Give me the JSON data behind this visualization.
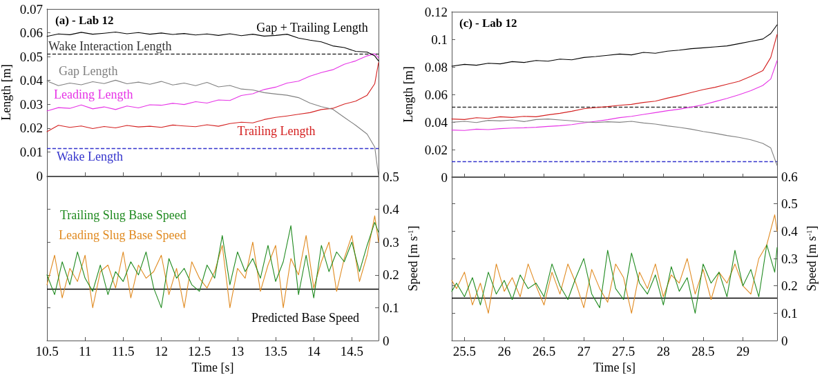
{
  "chart_data": [
    {
      "type": "line",
      "title": "(a) - Lab 12",
      "ylabel": "Length [m]",
      "xlim": [
        10.5,
        14.85
      ],
      "xticks": [
        10.5,
        11,
        11.5,
        12,
        12.5,
        13,
        13.5,
        14,
        14.5
      ],
      "ylim": [
        0,
        0.07
      ],
      "yticks": [
        0,
        0.01,
        0.02,
        0.03,
        0.04,
        0.05,
        0.06,
        0.07
      ],
      "tick_labels": "y",
      "x": [
        10.5,
        10.65,
        10.8,
        10.95,
        11.1,
        11.25,
        11.4,
        11.55,
        11.7,
        11.85,
        12.0,
        12.15,
        12.3,
        12.45,
        12.6,
        12.75,
        12.9,
        13.05,
        13.2,
        13.35,
        13.5,
        13.65,
        13.8,
        13.95,
        14.1,
        14.25,
        14.4,
        14.55,
        14.7,
        14.8,
        14.85
      ],
      "series": [
        {
          "name": "Gap + Trailing Length",
          "color": "#000000",
          "values": [
            0.0585,
            0.0595,
            0.0592,
            0.0602,
            0.0594,
            0.0598,
            0.0603,
            0.0596,
            0.0601,
            0.0594,
            0.0599,
            0.0593,
            0.0597,
            0.0591,
            0.0595,
            0.0589,
            0.0596,
            0.0588,
            0.0594,
            0.0586,
            0.0589,
            0.0594,
            0.0578,
            0.0569,
            0.0562,
            0.0545,
            0.0538,
            0.0522,
            0.0519,
            0.0503,
            0.0482
          ]
        },
        {
          "name": "Gap Length",
          "color": "#808080",
          "values": [
            0.0398,
            0.0378,
            0.0389,
            0.0382,
            0.0395,
            0.0387,
            0.0401,
            0.0386,
            0.0393,
            0.0384,
            0.0396,
            0.0381,
            0.0389,
            0.0378,
            0.0392,
            0.0373,
            0.0379,
            0.0364,
            0.036,
            0.0349,
            0.0343,
            0.0338,
            0.0328,
            0.0305,
            0.029,
            0.0279,
            0.0245,
            0.0212,
            0.0175,
            0.0121,
            0.0
          ]
        },
        {
          "name": "Leading Length",
          "color": "#e633e6",
          "values": [
            0.0272,
            0.0286,
            0.0283,
            0.0297,
            0.0281,
            0.0289,
            0.0278,
            0.0293,
            0.0285,
            0.0298,
            0.0296,
            0.0304,
            0.0299,
            0.0311,
            0.0305,
            0.0318,
            0.0316,
            0.0337,
            0.0344,
            0.0362,
            0.0372,
            0.0389,
            0.0397,
            0.0418,
            0.0433,
            0.0445,
            0.0468,
            0.0482,
            0.0503,
            0.0512,
            0.0495
          ]
        },
        {
          "name": "Trailing Length",
          "color": "#d42020",
          "values": [
            0.0185,
            0.0212,
            0.0203,
            0.0209,
            0.0198,
            0.0207,
            0.0201,
            0.0211,
            0.0205,
            0.0208,
            0.0203,
            0.0213,
            0.0209,
            0.0206,
            0.0214,
            0.0208,
            0.0219,
            0.0225,
            0.0222,
            0.0236,
            0.0245,
            0.0251,
            0.0258,
            0.0265,
            0.0278,
            0.0283,
            0.0301,
            0.0313,
            0.0338,
            0.0386,
            0.0475
          ]
        }
      ],
      "ref_lines": [
        {
          "axis": "y",
          "value": 0.051,
          "label": "Wake Interaction Length",
          "color": "#333333",
          "line_style": "dashed"
        },
        {
          "axis": "y",
          "value": 0.0115,
          "label": "Wake Length",
          "color": "#3333cc",
          "line_style": "dashed"
        }
      ]
    },
    {
      "type": "line",
      "title": "(c) - Lab 12",
      "ylabel": "Length [m]",
      "xlim": [
        25.34,
        29.43
      ],
      "xticks": [
        25.5,
        26,
        26.5,
        27,
        27.5,
        28,
        28.5,
        29
      ],
      "ylim": [
        0,
        0.12
      ],
      "yticks": [
        0,
        0.02,
        0.04,
        0.06,
        0.08,
        0.1,
        0.12
      ],
      "tick_labels": "y",
      "x": [
        25.34,
        25.5,
        25.65,
        25.8,
        25.95,
        26.1,
        26.25,
        26.4,
        26.55,
        26.7,
        26.85,
        27.0,
        27.15,
        27.3,
        27.45,
        27.6,
        27.75,
        27.9,
        28.05,
        28.2,
        28.35,
        28.5,
        28.65,
        28.8,
        28.95,
        29.1,
        29.25,
        29.35,
        29.43
      ],
      "series": [
        {
          "color": "#000000",
          "values": [
            0.0805,
            0.0818,
            0.0812,
            0.0826,
            0.0822,
            0.0838,
            0.0832,
            0.0846,
            0.0841,
            0.0856,
            0.0851,
            0.0868,
            0.0875,
            0.0884,
            0.0893,
            0.0887,
            0.0905,
            0.0899,
            0.0914,
            0.0921,
            0.0932,
            0.0938,
            0.0945,
            0.0952,
            0.0968,
            0.0985,
            0.1002,
            0.1041,
            0.1105
          ]
        },
        {
          "color": "#808080",
          "values": [
            0.0398,
            0.0405,
            0.0396,
            0.0412,
            0.0408,
            0.0415,
            0.0403,
            0.0418,
            0.0422,
            0.0415,
            0.0409,
            0.0401,
            0.0396,
            0.0402,
            0.0398,
            0.0405,
            0.0393,
            0.0385,
            0.0372,
            0.0361,
            0.0348,
            0.0331,
            0.0318,
            0.0302,
            0.0289,
            0.0271,
            0.0245,
            0.0212,
            0.0085
          ]
        },
        {
          "color": "#e633e6",
          "values": [
            0.0342,
            0.0339,
            0.0348,
            0.0345,
            0.0352,
            0.0356,
            0.0358,
            0.0362,
            0.0368,
            0.0373,
            0.0381,
            0.0394,
            0.0405,
            0.0417,
            0.0432,
            0.0441,
            0.0455,
            0.0468,
            0.0482,
            0.0493,
            0.0508,
            0.0525,
            0.0548,
            0.0571,
            0.0598,
            0.0628,
            0.0665,
            0.0712,
            0.0845
          ]
        },
        {
          "color": "#d42020",
          "values": [
            0.0422,
            0.0418,
            0.0431,
            0.0426,
            0.0438,
            0.0433,
            0.0441,
            0.0438,
            0.0452,
            0.0463,
            0.0478,
            0.0496,
            0.0505,
            0.0512,
            0.0521,
            0.0528,
            0.0542,
            0.0551,
            0.0573,
            0.0592,
            0.0614,
            0.0635,
            0.0652,
            0.0674,
            0.0695,
            0.0731,
            0.0772,
            0.0868,
            0.1035
          ]
        }
      ],
      "ref_lines": [
        {
          "axis": "y",
          "value": 0.051,
          "color": "#333333",
          "line_style": "dashed"
        },
        {
          "axis": "y",
          "value": 0.0115,
          "color": "#3333cc",
          "line_style": "dashed"
        }
      ]
    },
    {
      "type": "line",
      "xlabel": "Time [s]",
      "y2label": "Speed [m s$^{-1}$]",
      "xlim": [
        10.5,
        14.85
      ],
      "xticks": [
        10.5,
        11,
        11.5,
        12,
        12.5,
        13,
        13.5,
        14,
        14.5
      ],
      "y2lim": [
        0,
        0.5
      ],
      "y2ticks": [
        0,
        0.1,
        0.2,
        0.3,
        0.4,
        0.5
      ],
      "x": [
        10.5,
        10.6,
        10.7,
        10.8,
        10.9,
        11.0,
        11.1,
        11.2,
        11.3,
        11.4,
        11.5,
        11.6,
        11.7,
        11.8,
        11.9,
        12.0,
        12.1,
        12.2,
        12.3,
        12.4,
        12.5,
        12.6,
        12.7,
        12.8,
        12.9,
        13.0,
        13.1,
        13.2,
        13.3,
        13.4,
        13.5,
        13.6,
        13.7,
        13.8,
        13.9,
        14.0,
        14.1,
        14.2,
        14.3,
        14.4,
        14.5,
        14.6,
        14.7,
        14.8,
        14.85
      ],
      "series": [
        {
          "name": "Trailing Slug Base Speed",
          "color": "#1f8a1f",
          "axis": "y2",
          "values": [
            0.2,
            0.14,
            0.24,
            0.17,
            0.27,
            0.19,
            0.15,
            0.23,
            0.14,
            0.21,
            0.18,
            0.24,
            0.2,
            0.27,
            0.16,
            0.1,
            0.25,
            0.19,
            0.22,
            0.17,
            0.15,
            0.23,
            0.19,
            0.32,
            0.17,
            0.27,
            0.21,
            0.25,
            0.19,
            0.29,
            0.18,
            0.24,
            0.35,
            0.14,
            0.26,
            0.13,
            0.29,
            0.21,
            0.27,
            0.24,
            0.3,
            0.21,
            0.29,
            0.36,
            0.33
          ]
        },
        {
          "name": "Leading Slug Base Speed",
          "color": "#e08a20",
          "axis": "y2",
          "values": [
            0.17,
            0.26,
            0.13,
            0.22,
            0.18,
            0.26,
            0.1,
            0.21,
            0.23,
            0.16,
            0.27,
            0.13,
            0.23,
            0.19,
            0.21,
            0.26,
            0.14,
            0.22,
            0.1,
            0.24,
            0.19,
            0.16,
            0.21,
            0.29,
            0.1,
            0.22,
            0.19,
            0.3,
            0.15,
            0.23,
            0.29,
            0.1,
            0.25,
            0.2,
            0.32,
            0.16,
            0.24,
            0.3,
            0.15,
            0.25,
            0.32,
            0.18,
            0.26,
            0.38,
            0.3
          ]
        }
      ],
      "ref_lines": [
        {
          "axis": "y2",
          "value": 0.156,
          "label": "Predicted Base Speed",
          "color": "#000000"
        }
      ]
    },
    {
      "type": "line",
      "xlabel": "Time [s]",
      "y2label": "Speed [m s$^{-1}$]",
      "xlim": [
        25.34,
        29.43
      ],
      "xticks": [
        25.5,
        26,
        26.5,
        27,
        27.5,
        28,
        28.5,
        29
      ],
      "y2lim": [
        0,
        0.6
      ],
      "y2ticks": [
        0,
        0.1,
        0.2,
        0.3,
        0.4,
        0.5,
        0.6
      ],
      "x": [
        25.34,
        25.4,
        25.5,
        25.6,
        25.7,
        25.8,
        25.9,
        26.0,
        26.1,
        26.2,
        26.3,
        26.4,
        26.5,
        26.6,
        26.7,
        26.8,
        26.9,
        27.0,
        27.1,
        27.2,
        27.3,
        27.4,
        27.5,
        27.6,
        27.7,
        27.8,
        27.9,
        28.0,
        28.1,
        28.2,
        28.3,
        28.4,
        28.5,
        28.6,
        28.7,
        28.8,
        28.9,
        29.0,
        29.1,
        29.2,
        29.3,
        29.4,
        29.43
      ],
      "series": [
        {
          "color": "#1f8a1f",
          "axis": "y2",
          "values": [
            0.18,
            0.21,
            0.16,
            0.23,
            0.13,
            0.25,
            0.17,
            0.22,
            0.15,
            0.24,
            0.19,
            0.21,
            0.16,
            0.28,
            0.2,
            0.15,
            0.23,
            0.3,
            0.17,
            0.12,
            0.33,
            0.19,
            0.15,
            0.32,
            0.21,
            0.17,
            0.24,
            0.13,
            0.27,
            0.18,
            0.23,
            0.1,
            0.28,
            0.21,
            0.25,
            0.16,
            0.33,
            0.2,
            0.26,
            0.16,
            0.35,
            0.25,
            0.34
          ]
        },
        {
          "color": "#e08a20",
          "axis": "y2",
          "values": [
            0.22,
            0.19,
            0.25,
            0.13,
            0.21,
            0.1,
            0.28,
            0.18,
            0.23,
            0.16,
            0.28,
            0.2,
            0.13,
            0.25,
            0.17,
            0.28,
            0.21,
            0.12,
            0.26,
            0.19,
            0.14,
            0.28,
            0.23,
            0.1,
            0.25,
            0.19,
            0.28,
            0.16,
            0.24,
            0.21,
            0.3,
            0.17,
            0.26,
            0.15,
            0.25,
            0.21,
            0.28,
            0.2,
            0.17,
            0.3,
            0.35,
            0.46,
            0.4
          ]
        }
      ],
      "ref_lines": [
        {
          "axis": "y2",
          "value": 0.156,
          "color": "#000000"
        }
      ]
    }
  ]
}
